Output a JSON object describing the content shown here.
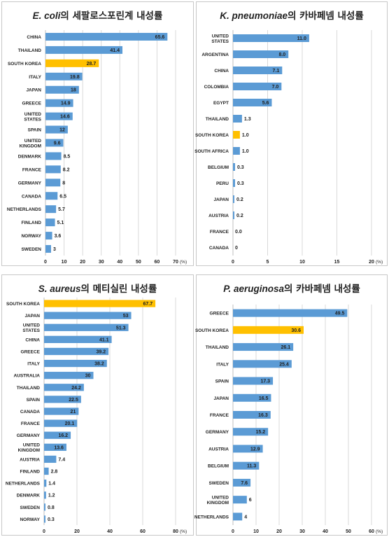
{
  "colors": {
    "bar": "#5b9bd5",
    "highlight": "#ffc000",
    "grid": "#d9d9d9",
    "text": "#222222"
  },
  "chart_data": [
    {
      "type": "bar",
      "orientation": "horizontal",
      "title_italic": "E. coli",
      "title_rest": "의 세팔로스포린계 내성률",
      "categories": [
        "CHINA",
        "THAILAND",
        "SOUTH KOREA",
        "ITALY",
        "JAPAN",
        "GREECE",
        "UNITED STATES",
        "SPAIN",
        "UNITED KINGDOM",
        "DENMARK",
        "FRANCE",
        "GERMANY",
        "CANADA",
        "NETHERLANDS",
        "FINLAND",
        "NORWAY",
        "SWEDEN"
      ],
      "values": [
        65.6,
        41.4,
        28.7,
        19.8,
        18,
        14.9,
        14.6,
        12,
        9.6,
        8.5,
        8.2,
        8,
        6.5,
        5.7,
        5.1,
        3.6,
        3
      ],
      "value_labels": [
        "65.6",
        "41.4",
        "28.7",
        "19.8",
        "18",
        "14.9",
        "14.6",
        "12",
        "9.6",
        "8.5",
        "8.2",
        "8",
        "6.5",
        "5.7",
        "5.1",
        "3.6",
        "3"
      ],
      "highlight": "SOUTH KOREA",
      "xlim": [
        0,
        70
      ],
      "xticks": [
        0,
        10,
        20,
        30,
        40,
        50,
        60,
        70
      ],
      "unit": "(%)",
      "grid": true
    },
    {
      "type": "bar",
      "orientation": "horizontal",
      "title_italic": "K. pneumoniae",
      "title_rest": "의 카바페넴 내성률",
      "categories": [
        "UNITED STATES",
        "ARGENTINA",
        "CHINA",
        "COLOMBIA",
        "EGYPT",
        "THAILAND",
        "SOUTH KOREA",
        "SOUTH AFRICA",
        "BELGIUM",
        "PERU",
        "JAPAN",
        "AUSTRIA",
        "FRANCE",
        "CANADA"
      ],
      "values": [
        11.0,
        8.0,
        7.1,
        7.0,
        5.6,
        1.3,
        1.0,
        1.0,
        0.3,
        0.3,
        0.2,
        0.2,
        0.0,
        0
      ],
      "value_labels": [
        "11.0",
        "8.0",
        "7.1",
        "7.0",
        "5.6",
        "1.3",
        "1.0",
        "1.0",
        "0.3",
        "0.3",
        "0.2",
        "0.2",
        "0.0",
        "0"
      ],
      "highlight": "SOUTH KOREA",
      "xlim": [
        0,
        20
      ],
      "xticks": [
        0,
        5,
        10,
        15,
        20
      ],
      "unit": "(%)",
      "grid": true
    },
    {
      "type": "bar",
      "orientation": "horizontal",
      "title_italic": "S. aureus",
      "title_rest": "의 메티실린 내성률",
      "categories": [
        "SOUTH KOREA",
        "JAPAN",
        "UNITED STATES",
        "CHINA",
        "GREECE",
        "ITALY",
        "AUSTRALIA",
        "THAILAND",
        "SPAIN",
        "CANADA",
        "FRANCE",
        "GERMANY",
        "UNITED KINGDOM",
        "AUSTRIA",
        "FINLAND",
        "NETHERLANDS",
        "DENMARK",
        "SWEDEN",
        "NORWAY"
      ],
      "values": [
        67.7,
        53,
        51.3,
        41.1,
        39.2,
        38.2,
        30,
        24.2,
        22.5,
        21,
        20.1,
        16.2,
        13.6,
        7.4,
        2.8,
        1.4,
        1.2,
        0.8,
        0.3
      ],
      "value_labels": [
        "67.7",
        "53",
        "51.3",
        "41.1",
        "39.2",
        "38.2",
        "30",
        "24.2",
        "22.5",
        "21",
        "20.1",
        "16.2",
        "13.6",
        "7.4",
        "2.8",
        "1.4",
        "1.2",
        "0.8",
        "0.3"
      ],
      "highlight": "SOUTH KOREA",
      "xlim": [
        0,
        80
      ],
      "xticks": [
        0,
        20,
        40,
        60,
        80
      ],
      "unit": "(%)",
      "grid": true
    },
    {
      "type": "bar",
      "orientation": "horizontal",
      "title_italic": "P. aeruginosa",
      "title_rest": "의 카바페넴 내성률",
      "categories": [
        "GREECE",
        "SOUTH KOREA",
        "THAILAND",
        "ITALY",
        "SPAIN",
        "JAPAN",
        "FRANCE",
        "GERMANY",
        "AUSTRIA",
        "BELGIUM",
        "SWEDEN",
        "UNITED KINGDOM",
        "NETHERLANDS"
      ],
      "values": [
        49.5,
        30.6,
        26.1,
        25.4,
        17.3,
        16.5,
        16.3,
        15.2,
        12.9,
        11.3,
        7.6,
        6,
        4
      ],
      "value_labels": [
        "49.5",
        "30.6",
        "26.1",
        "25.4",
        "17.3",
        "16.5",
        "16.3",
        "15.2",
        "12.9",
        "11.3",
        "7.6",
        "6",
        "4"
      ],
      "highlight": "SOUTH KOREA",
      "xlim": [
        0,
        60
      ],
      "xticks": [
        0,
        10,
        20,
        30,
        40,
        50,
        60
      ],
      "unit": "(%)",
      "grid": true
    }
  ]
}
